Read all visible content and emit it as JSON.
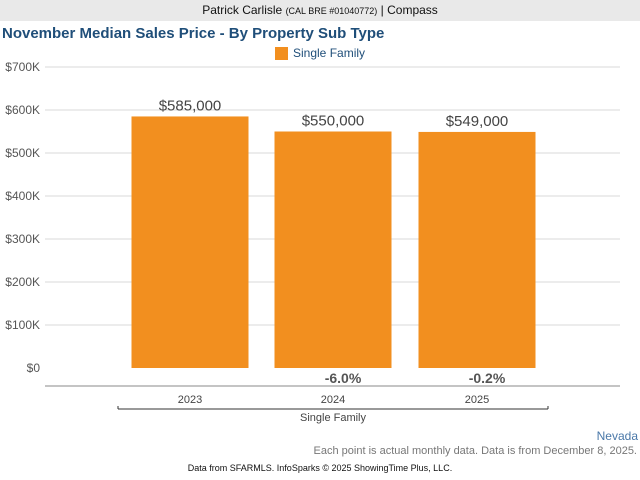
{
  "header": {
    "agent_name": "Patrick Carlisle",
    "license": "(CAL BRE #01040772)",
    "separator": "|",
    "brokerage": "Compass"
  },
  "chart_data": {
    "type": "bar",
    "title": "November Median Sales Price - By Property Sub Type",
    "legend": [
      "Single Family"
    ],
    "color": "#f28f1f",
    "categories": [
      "2023",
      "2024",
      "2025"
    ],
    "series": [
      {
        "name": "Single Family",
        "values": [
          585000,
          550000,
          549000
        ]
      }
    ],
    "data_labels": [
      "$585,000",
      "$550,000",
      "$549,000"
    ],
    "change_labels": [
      "",
      "-6.0%",
      "-0.2%"
    ],
    "ylim": [
      0,
      700000
    ],
    "yticks": [
      0,
      100000,
      200000,
      300000,
      400000,
      500000,
      600000,
      700000
    ],
    "ytick_labels": [
      "$0",
      "$100K",
      "$200K",
      "$300K",
      "$400K",
      "$500K",
      "$600K",
      "$700K"
    ],
    "group_label": "Single Family",
    "grid": true
  },
  "notes": {
    "region": "Nevada",
    "data_note": "Each point is actual monthly data. Data is from December 8, 2025."
  },
  "footer": {
    "text": "Data from SFARMLS. InfoSparks © 2025 ShowingTime Plus, LLC."
  }
}
